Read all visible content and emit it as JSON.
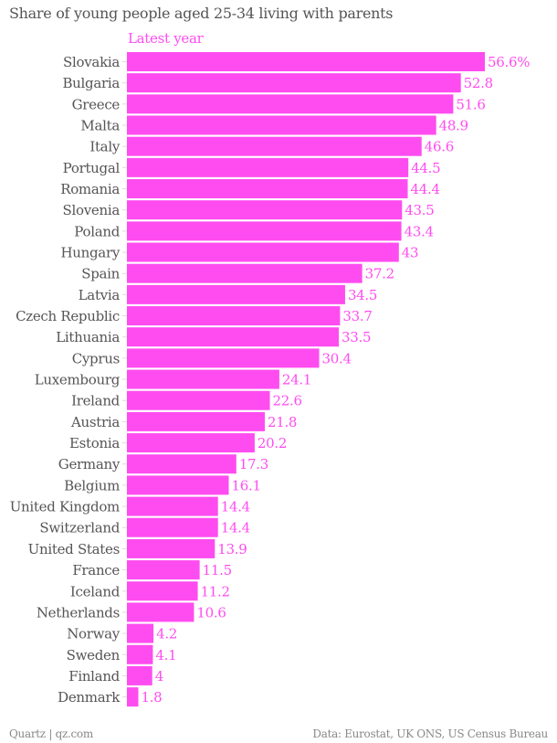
{
  "chart_data": {
    "type": "bar",
    "orientation": "horizontal",
    "title": "Share of young people aged 25-34 living with parents",
    "series": [
      {
        "name": "Latest year",
        "color": "#ff4cf0",
        "values": [
          56.6,
          52.8,
          51.6,
          48.9,
          46.6,
          44.5,
          44.4,
          43.5,
          43.4,
          43,
          37.2,
          34.5,
          33.7,
          33.5,
          30.4,
          24.1,
          22.6,
          21.8,
          20.2,
          17.3,
          16.1,
          14.4,
          14.4,
          13.9,
          11.5,
          11.2,
          10.6,
          4.2,
          4.1,
          4,
          1.8
        ]
      }
    ],
    "categories": [
      "Slovakia",
      "Bulgaria",
      "Greece",
      "Malta",
      "Italy",
      "Portugal",
      "Romania",
      "Slovenia",
      "Poland",
      "Hungary",
      "Spain",
      "Latvia",
      "Czech Republic",
      "Lithuania",
      "Cyprus",
      "Luxembourg",
      "Ireland",
      "Austria",
      "Estonia",
      "Germany",
      "Belgium",
      "United Kingdom",
      "Switzerland",
      "United States",
      "France",
      "Iceland",
      "Netherlands",
      "Norway",
      "Sweden",
      "Finland",
      "Denmark"
    ],
    "data_labels": [
      "56.6%",
      "52.8",
      "51.6",
      "48.9",
      "46.6",
      "44.5",
      "44.4",
      "43.5",
      "43.4",
      "43",
      "37.2",
      "34.5",
      "33.7",
      "33.5",
      "30.4",
      "24.1",
      "22.6",
      "21.8",
      "20.2",
      "17.3",
      "16.1",
      "14.4",
      "14.4",
      "13.9",
      "11.5",
      "11.2",
      "10.6",
      "4.2",
      "4.1",
      "4",
      "1.8"
    ],
    "xlim": [
      0,
      56.6
    ],
    "grid": false,
    "legend": "top-left"
  },
  "footer": {
    "left": "Quartz | qz.com",
    "right": "Data: Eurostat, UK ONS, US Census Bureau"
  }
}
